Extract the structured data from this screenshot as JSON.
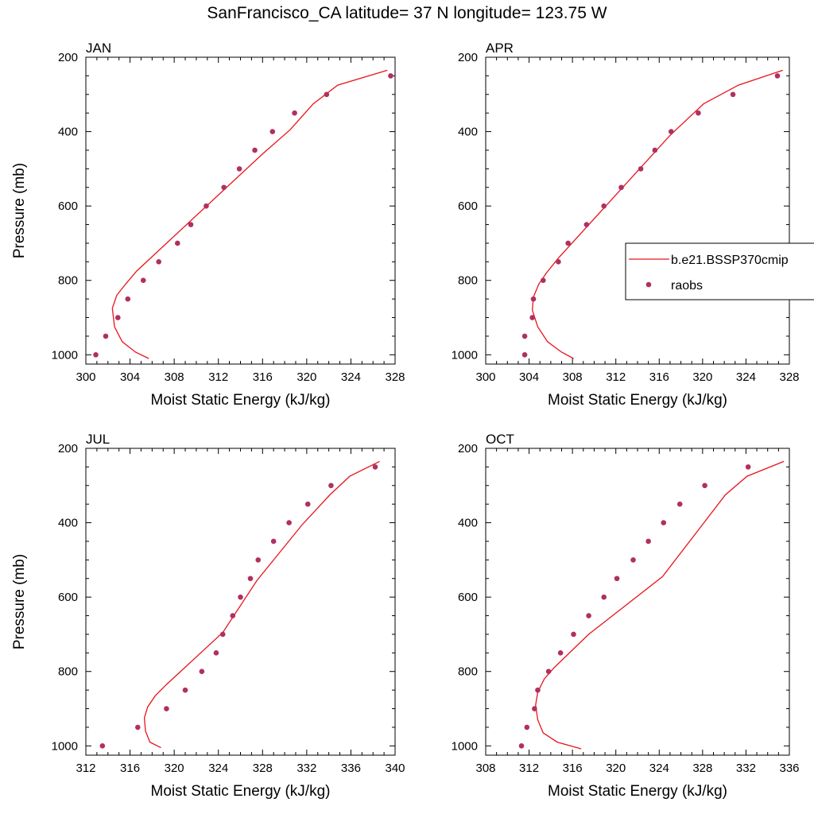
{
  "title": "SanFrancisco_CA  latitude= 37 N longitude= 123.75 W",
  "colors": {
    "model": "#e8141b",
    "obs": "#b03060",
    "axis": "#000000"
  },
  "legend": {
    "model_label": "b.e21.BSSP370cmip",
    "obs_label": "raobs",
    "placement": "right-middle of APR panel"
  },
  "chart_data": [
    {
      "type": "line",
      "panel_label": "JAN",
      "xlabel": "Moist Static Energy (kJ/kg)",
      "ylabel": "Pressure (mb)",
      "xlim": [
        300,
        328
      ],
      "ylim": [
        1025,
        200
      ],
      "xticks": [
        300,
        304,
        308,
        312,
        316,
        320,
        324,
        328
      ],
      "yticks": [
        200,
        400,
        600,
        800,
        1000
      ],
      "series": [
        {
          "name": "b.e21.BSSP370cmip",
          "kind": "line",
          "x": [
            305.7,
            304.5,
            303.3,
            302.6,
            302.4,
            302.8,
            303.6,
            304.6,
            316.0,
            318.5,
            320.6,
            322.8,
            327.3
          ],
          "y": [
            1010,
            993,
            965,
            925,
            875,
            840,
            810,
            775,
            460,
            395,
            325,
            275,
            235
          ]
        },
        {
          "name": "raobs",
          "kind": "scatter",
          "x": [
            300.9,
            301.8,
            302.9,
            303.8,
            305.2,
            306.6,
            308.3,
            309.5,
            310.9,
            312.5,
            313.9,
            315.3,
            316.9,
            318.9,
            321.8,
            327.6
          ],
          "y": [
            1000,
            950,
            900,
            850,
            800,
            750,
            700,
            650,
            600,
            550,
            500,
            450,
            400,
            350,
            300,
            250
          ]
        }
      ]
    },
    {
      "type": "line",
      "panel_label": "APR",
      "xlabel": "Moist Static Energy (kJ/kg)",
      "ylabel": "",
      "xlim": [
        300,
        328
      ],
      "ylim": [
        1025,
        200
      ],
      "xticks": [
        300,
        304,
        308,
        312,
        316,
        320,
        324,
        328
      ],
      "yticks": [
        200,
        400,
        600,
        800,
        1000
      ],
      "series": [
        {
          "name": "b.e21.BSSP370cmip",
          "kind": "line",
          "x": [
            308.1,
            307.0,
            305.7,
            304.8,
            304.3,
            304.4,
            304.9,
            305.6,
            306.7,
            317.0,
            320.1,
            323.3,
            327.4
          ],
          "y": [
            1010,
            993,
            965,
            925,
            880,
            845,
            810,
            780,
            740,
            410,
            325,
            275,
            235
          ]
        },
        {
          "name": "raobs",
          "kind": "scatter",
          "x": [
            303.6,
            303.6,
            304.3,
            304.4,
            305.3,
            306.7,
            307.6,
            309.3,
            310.9,
            312.5,
            314.3,
            315.6,
            317.1,
            319.6,
            322.8,
            326.9
          ],
          "y": [
            1000,
            950,
            900,
            850,
            800,
            750,
            700,
            650,
            600,
            550,
            500,
            450,
            400,
            350,
            300,
            250
          ]
        }
      ]
    },
    {
      "type": "line",
      "panel_label": "JUL",
      "xlabel": "Moist Static Energy (kJ/kg)",
      "ylabel": "Pressure (mb)",
      "xlim": [
        312,
        340
      ],
      "ylim": [
        1025,
        200
      ],
      "xticks": [
        312,
        316,
        320,
        324,
        328,
        332,
        336,
        340
      ],
      "yticks": [
        200,
        400,
        600,
        800,
        1000
      ],
      "series": [
        {
          "name": "b.e21.BSSP370cmip",
          "kind": "line",
          "x": [
            318.8,
            317.8,
            317.4,
            317.3,
            317.6,
            318.3,
            319.3,
            324.4,
            327.5,
            331.6,
            334.1,
            335.9,
            338.6
          ],
          "y": [
            1005,
            990,
            960,
            925,
            895,
            865,
            835,
            695,
            555,
            405,
            325,
            275,
            235
          ]
        },
        {
          "name": "raobs",
          "kind": "scatter",
          "x": [
            313.5,
            316.7,
            319.3,
            321.0,
            322.5,
            323.8,
            324.4,
            325.3,
            326.0,
            326.9,
            327.6,
            329.0,
            330.4,
            332.1,
            334.2,
            338.2
          ],
          "y": [
            1000,
            950,
            900,
            850,
            800,
            750,
            700,
            650,
            600,
            550,
            500,
            450,
            400,
            350,
            300,
            250
          ]
        }
      ]
    },
    {
      "type": "line",
      "panel_label": "OCT",
      "xlabel": "Moist Static Energy (kJ/kg)",
      "ylabel": "",
      "xlim": [
        308,
        336
      ],
      "ylim": [
        1025,
        200
      ],
      "xticks": [
        308,
        312,
        316,
        320,
        324,
        328,
        332,
        336
      ],
      "yticks": [
        200,
        400,
        600,
        800,
        1000
      ],
      "series": [
        {
          "name": "b.e21.BSSP370cmip",
          "kind": "line",
          "x": [
            316.8,
            314.6,
            313.3,
            312.8,
            312.6,
            312.8,
            313.4,
            314.3,
            317.5,
            324.3,
            330.1,
            332.1,
            335.5
          ],
          "y": [
            1008,
            990,
            965,
            930,
            890,
            855,
            820,
            790,
            700,
            545,
            325,
            275,
            235
          ]
        },
        {
          "name": "raobs",
          "kind": "scatter",
          "x": [
            311.3,
            311.8,
            312.5,
            312.8,
            313.8,
            314.9,
            316.1,
            317.5,
            318.9,
            320.1,
            321.6,
            323.0,
            324.4,
            325.9,
            328.2,
            332.2
          ],
          "y": [
            1000,
            950,
            900,
            850,
            800,
            750,
            700,
            650,
            600,
            550,
            500,
            450,
            400,
            350,
            300,
            250
          ]
        }
      ]
    }
  ]
}
